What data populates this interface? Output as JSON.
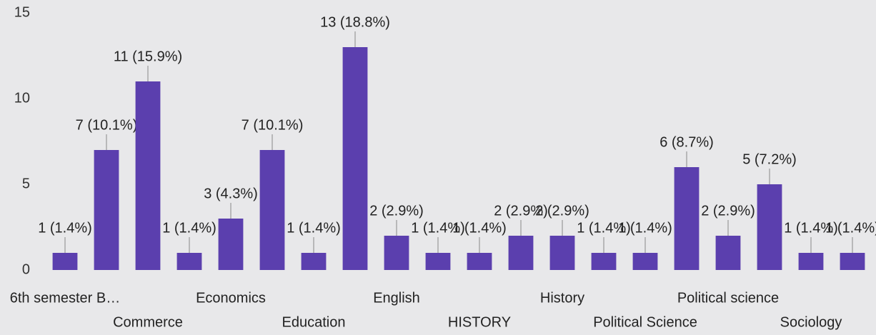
{
  "chart_data": {
    "type": "bar",
    "categories": [
      "6th semester B…",
      null,
      "Commerce",
      null,
      "Economics",
      null,
      "Education",
      null,
      "English",
      null,
      "HISTORY",
      null,
      "History",
      null,
      "Political Science",
      null,
      "Political science",
      null,
      "Sociology",
      null
    ],
    "values": [
      1,
      7,
      11,
      1,
      3,
      7,
      1,
      13,
      2,
      1,
      1,
      2,
      2,
      1,
      1,
      6,
      2,
      5,
      1,
      1
    ],
    "value_labels": [
      "1 (1.4%)",
      "7 (10.1%)",
      "11 (15.9%)",
      "1 (1.4%)",
      "3 (4.3%)",
      "7 (10.1%)",
      "1 (1.4%)",
      "13 (18.8%)",
      "2 (2.9%)",
      "1 (1.4%)",
      "1 (1.4%)",
      "2 (2.9%)",
      "2 (2.9%)",
      "1 (1.4%)",
      "1 (1.4%)",
      "6 (8.7%)",
      "2 (2.9%)",
      "5 (7.2%)",
      "1 (1.4%)",
      "1 (1.4%)"
    ],
    "color": "#5b3fae",
    "ylim": [
      0,
      15
    ],
    "yticks": [
      0,
      5,
      10,
      15
    ],
    "grid": false
  }
}
